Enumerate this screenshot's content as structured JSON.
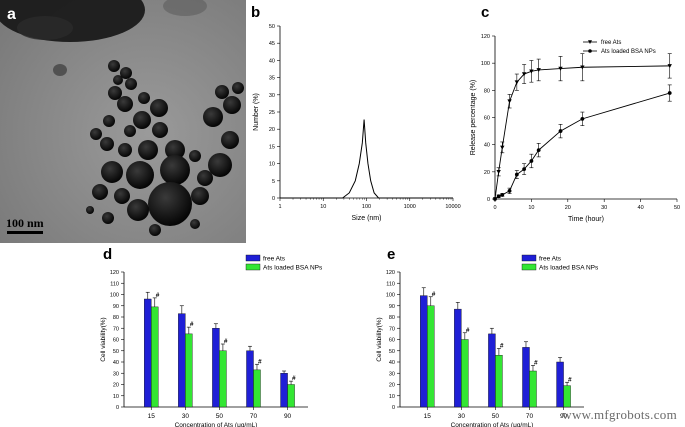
{
  "panels": {
    "a": {
      "letter": "a",
      "scale_label": "100 nm"
    },
    "b": {
      "letter": "b",
      "chart_data": {
        "type": "line",
        "title": "",
        "xlabel": "Size (nm)",
        "ylabel": "Number (%)",
        "x_scale": "log",
        "xlim": [
          1,
          10000
        ],
        "ylim": [
          0,
          50
        ],
        "xticks": [
          "1",
          "10",
          "100",
          "1000",
          "10000"
        ],
        "yticks": [
          0,
          5,
          10,
          15,
          20,
          25,
          30,
          35,
          40,
          45,
          50
        ],
        "series": [
          {
            "x": [
              1,
              28,
              40,
              55,
              68,
              80,
              88,
              96,
              108,
              125,
              150,
              190,
              250,
              10000
            ],
            "y": [
              0,
              0,
              1.5,
              5,
              10,
              16,
              22.8,
              16,
              10,
              5,
              1.5,
              0,
              0,
              0
            ]
          }
        ]
      }
    },
    "c": {
      "letter": "c",
      "chart_data": {
        "type": "line",
        "title": "",
        "xlabel": "Time (hour)",
        "ylabel": "Release percentage (%)",
        "xlim": [
          0,
          50
        ],
        "ylim": [
          0,
          120
        ],
        "xticks": [
          0,
          10,
          20,
          30,
          40,
          50
        ],
        "yticks": [
          0,
          20,
          40,
          60,
          80,
          100,
          120
        ],
        "legend_position": "top-right",
        "series": [
          {
            "name": "free Ats",
            "marker": "triangle",
            "x": [
              0,
              1,
              2,
              4,
              6,
              8,
              10,
              12,
              18,
              24,
              48
            ],
            "y": [
              0,
              20,
              38,
              72,
              86,
              92,
              94,
              95,
              96,
              97,
              98
            ],
            "err": [
              0,
              3,
              4,
              5,
              6,
              7,
              8,
              8,
              9,
              10,
              9
            ]
          },
          {
            "name": "Ats loaded BSA NPs",
            "marker": "circle",
            "x": [
              0,
              1,
              2,
              4,
              6,
              8,
              10,
              12,
              18,
              24,
              48
            ],
            "y": [
              0,
              2,
              3,
              6,
              18,
              22,
              28,
              36,
              50,
              59,
              78
            ],
            "err": [
              0,
              1,
              1,
              2,
              3,
              4,
              5,
              5,
              5,
              5,
              6
            ]
          }
        ]
      }
    },
    "d": {
      "letter": "d",
      "chart_data": {
        "type": "bar",
        "title": "",
        "xlabel": "Concentration of Ats (μg/mL)",
        "ylabel": "Cell viability(%)",
        "ylim": [
          0,
          120
        ],
        "yticks": [
          0,
          10,
          20,
          30,
          40,
          50,
          60,
          70,
          80,
          90,
          100,
          110,
          120
        ],
        "categories": [
          "15",
          "30",
          "50",
          "70",
          "90"
        ],
        "legend_position": "top-right",
        "significance_marker": "#",
        "series": [
          {
            "name": "free Ats",
            "color": "#1f1fd6",
            "values": [
              96,
              83,
              70,
              50,
              30
            ],
            "err": [
              6,
              7,
              4,
              4,
              2
            ]
          },
          {
            "name": "Ats loaded BSA NPs",
            "color": "#33e633",
            "values": [
              89,
              65,
              50,
              33,
              20
            ],
            "err": [
              8,
              6,
              6,
              5,
              3
            ]
          }
        ]
      }
    },
    "e": {
      "letter": "e",
      "chart_data": {
        "type": "bar",
        "title": "",
        "xlabel": "Concentration of Ats (μg/mL)",
        "ylabel": "Cell viability(%)",
        "ylim": [
          0,
          120
        ],
        "yticks": [
          0,
          10,
          20,
          30,
          40,
          50,
          60,
          70,
          80,
          90,
          100,
          110,
          120
        ],
        "categories": [
          "15",
          "30",
          "50",
          "70",
          "90"
        ],
        "legend_position": "top-right",
        "significance_marker": "#",
        "series": [
          {
            "name": "free Ats",
            "color": "#1f1fd6",
            "values": [
              99,
              87,
              65,
              53,
              40
            ],
            "err": [
              7,
              6,
              5,
              5,
              4
            ]
          },
          {
            "name": "Ats loaded BSA NPs",
            "color": "#33e633",
            "values": [
              90,
              60,
              46,
              32,
              19
            ],
            "err": [
              8,
              6,
              6,
              5,
              3
            ]
          }
        ]
      }
    }
  },
  "watermark": "www.mfgrobots.com"
}
